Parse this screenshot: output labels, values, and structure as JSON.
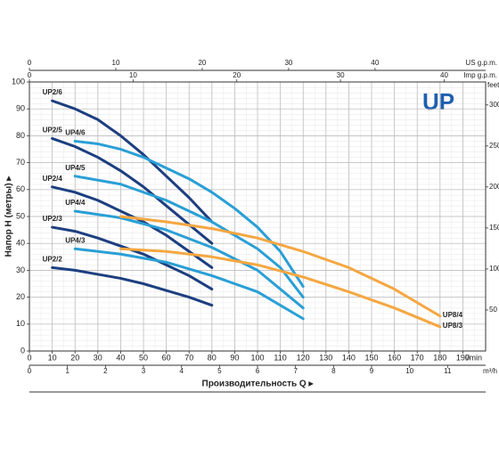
{
  "chart_data": {
    "type": "line",
    "title": "UP",
    "xlabel": "Производительность Q ▸",
    "ylabel": "Напор H (метры) ▸",
    "x_unit": "l/min",
    "xlim": [
      0,
      200
    ],
    "xticks": [
      0,
      10,
      20,
      30,
      40,
      50,
      60,
      70,
      80,
      90,
      100,
      110,
      120,
      130,
      140,
      150,
      160,
      170,
      180,
      190
    ],
    "ylim": [
      0,
      100
    ],
    "yticks": [
      0,
      10,
      20,
      30,
      40,
      50,
      60,
      70,
      80,
      90,
      100
    ],
    "grid": true,
    "secondary_axes": [
      {
        "label": "US g.p.m.",
        "side": "top",
        "lim": [
          0,
          52.8
        ],
        "ticks": [
          0,
          10,
          20,
          30,
          40
        ]
      },
      {
        "label": "Imp g.p.m.",
        "side": "top",
        "lim": [
          0,
          44
        ],
        "ticks": [
          0,
          10,
          20,
          30,
          40
        ]
      },
      {
        "label": "m³/h",
        "side": "bottom",
        "lim": [
          0,
          12
        ],
        "ticks": [
          0,
          1,
          2,
          3,
          4,
          5,
          6,
          7,
          8,
          9,
          10,
          11
        ]
      },
      {
        "label": "feet",
        "side": "right",
        "lim": [
          0,
          328
        ],
        "ticks": [
          50,
          100,
          150,
          200,
          250,
          300
        ]
      }
    ],
    "series": [
      {
        "name": "UP2/6",
        "color": "#1c3f80",
        "x": [
          10,
          20,
          30,
          40,
          50,
          60,
          70,
          80
        ],
        "values": [
          93,
          90,
          86,
          80,
          73,
          65,
          57,
          48
        ]
      },
      {
        "name": "UP2/5",
        "color": "#1c3f80",
        "x": [
          10,
          20,
          30,
          40,
          50,
          60,
          70,
          80
        ],
        "values": [
          79,
          76,
          72,
          67,
          61,
          54,
          47,
          40
        ]
      },
      {
        "name": "UP2/4",
        "color": "#1c3f80",
        "x": [
          10,
          20,
          30,
          40,
          50,
          60,
          70,
          80
        ],
        "values": [
          61,
          59,
          56,
          52,
          48,
          43,
          37,
          31
        ]
      },
      {
        "name": "UP2/3",
        "color": "#1c3f80",
        "x": [
          10,
          20,
          30,
          40,
          50,
          60,
          70,
          80
        ],
        "values": [
          46,
          44.5,
          42,
          39,
          36,
          32,
          28,
          23
        ]
      },
      {
        "name": "UP2/2",
        "color": "#1c3f80",
        "x": [
          10,
          20,
          30,
          40,
          50,
          60,
          70,
          80
        ],
        "values": [
          31,
          30,
          28.5,
          27,
          25,
          22.5,
          20,
          17
        ]
      },
      {
        "name": "UP4/6",
        "color": "#2a9fd6",
        "x": [
          20,
          30,
          40,
          50,
          60,
          70,
          80,
          90,
          100,
          110,
          120
        ],
        "values": [
          78,
          77,
          75,
          72,
          68,
          64,
          59,
          53,
          46,
          37,
          24
        ]
      },
      {
        "name": "UP4/5",
        "color": "#2a9fd6",
        "x": [
          20,
          40,
          60,
          80,
          100,
          110,
          120
        ],
        "values": [
          65,
          62,
          56,
          48,
          38,
          31,
          20
        ]
      },
      {
        "name": "UP4/4",
        "color": "#2a9fd6",
        "x": [
          20,
          40,
          60,
          80,
          100,
          120
        ],
        "values": [
          52,
          49.5,
          45,
          38.5,
          30,
          16
        ]
      },
      {
        "name": "UP4/3",
        "color": "#2a9fd6",
        "x": [
          20,
          40,
          60,
          80,
          100,
          120
        ],
        "values": [
          38,
          36,
          33,
          28,
          22,
          12
        ]
      },
      {
        "name": "UP8/4",
        "color": "#f5a742",
        "x": [
          40,
          60,
          80,
          100,
          120,
          140,
          160,
          180
        ],
        "values": [
          50,
          48,
          45.5,
          42,
          37,
          31,
          23,
          13
        ]
      },
      {
        "name": "UP8/3",
        "color": "#f5a742",
        "x": [
          40,
          60,
          80,
          100,
          120,
          140,
          160,
          180
        ],
        "values": [
          38,
          37,
          35,
          32,
          27.5,
          22,
          16,
          9
        ]
      }
    ]
  }
}
